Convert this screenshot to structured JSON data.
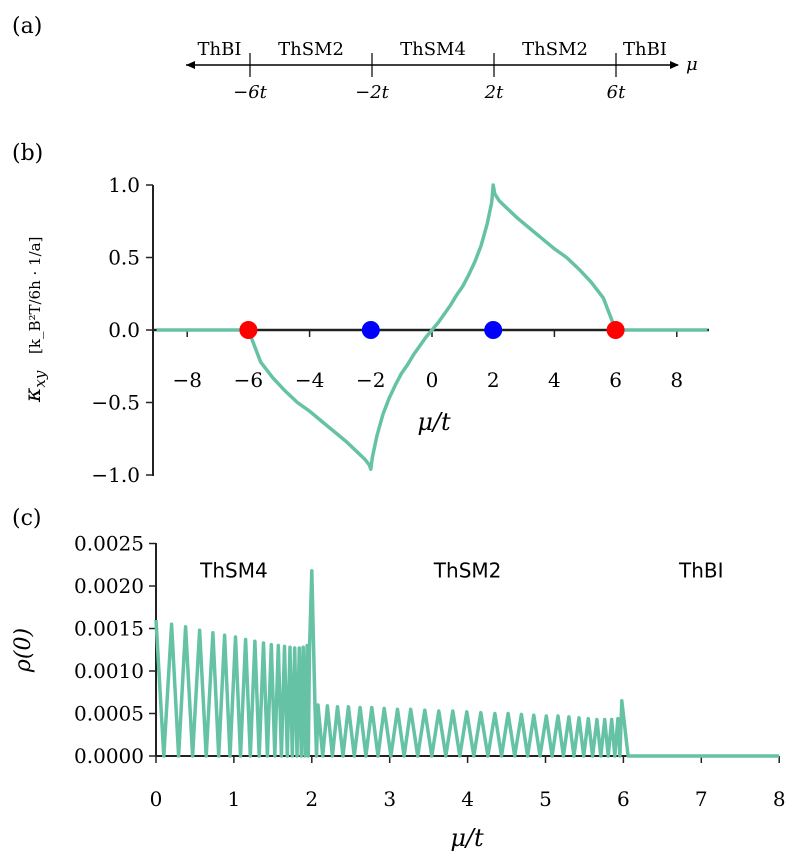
{
  "chart_data": [
    {
      "panel": "(a)",
      "type": "other",
      "description_kind": "phase line",
      "axis_symbol": "μ",
      "phases": [
        "ThBI",
        "ThSM2",
        "ThSM4",
        "ThSM2",
        "ThBI"
      ],
      "ticks": [
        {
          "value": -6,
          "label": "−6t"
        },
        {
          "value": -2,
          "label": "−2t"
        },
        {
          "value": 2,
          "label": "2t"
        },
        {
          "value": 6,
          "label": "6t"
        }
      ]
    },
    {
      "panel": "(b)",
      "type": "line",
      "xlabel": "μ/t",
      "ylabel": "κxy [k_B²T/6h · 1/a]",
      "ylabel_main": "κ",
      "ylabel_sub": "xy",
      "ylabel_units": "[k_B²T/6h · 1/a]",
      "xlim": [
        -9,
        9
      ],
      "ylim": [
        -1.0,
        1.0
      ],
      "xticks": [
        -8,
        -6,
        -4,
        -2,
        0,
        2,
        4,
        6,
        8
      ],
      "xtick_labels": [
        "−8",
        "−6",
        "−4",
        "−2",
        "0",
        "2",
        "4",
        "6",
        "8"
      ],
      "yticks": [
        -1.0,
        -0.5,
        0.0,
        0.5,
        1.0
      ],
      "ytick_labels": [
        "−1.0",
        "−0.5",
        "0.0",
        "0.5",
        "1.0"
      ],
      "series": [
        {
          "name": "kappa_xy",
          "color": "#66c2a5",
          "x": [
            -9,
            -8,
            -7,
            -6,
            -5.6,
            -5.2,
            -4.8,
            -4.4,
            -4.0,
            -3.6,
            -3.2,
            -2.8,
            -2.4,
            -2.2,
            -2.05,
            -2.0,
            -1.95,
            -1.8,
            -1.6,
            -1.4,
            -1.2,
            -1.0,
            -0.8,
            -0.6,
            -0.4,
            -0.2,
            0.0,
            0.2,
            0.4,
            0.6,
            0.8,
            1.0,
            1.2,
            1.4,
            1.6,
            1.8,
            1.95,
            2.0,
            2.05,
            2.2,
            2.4,
            2.8,
            3.2,
            3.6,
            4.0,
            4.4,
            4.8,
            5.2,
            5.6,
            6,
            7,
            8,
            9
          ],
          "y": [
            0,
            0,
            0,
            0,
            -0.22,
            -0.33,
            -0.42,
            -0.5,
            -0.56,
            -0.63,
            -0.7,
            -0.77,
            -0.85,
            -0.89,
            -0.93,
            -0.96,
            -0.88,
            -0.73,
            -0.58,
            -0.47,
            -0.38,
            -0.3,
            -0.24,
            -0.17,
            -0.11,
            -0.05,
            0.0,
            0.05,
            0.11,
            0.17,
            0.24,
            0.3,
            0.38,
            0.47,
            0.58,
            0.73,
            0.88,
            1.0,
            0.94,
            0.89,
            0.85,
            0.77,
            0.7,
            0.63,
            0.56,
            0.5,
            0.42,
            0.33,
            0.22,
            0,
            0,
            0,
            0
          ]
        }
      ],
      "markers": [
        {
          "x": -6,
          "y": 0,
          "color": "#ff0000"
        },
        {
          "x": -2,
          "y": 0,
          "color": "#0000ff"
        },
        {
          "x": 2,
          "y": 0,
          "color": "#0000ff"
        },
        {
          "x": 6,
          "y": 0,
          "color": "#ff0000"
        }
      ]
    },
    {
      "panel": "(c)",
      "type": "line",
      "xlabel": "μ/t",
      "ylabel": "ρ(0)",
      "xlim": [
        0,
        8
      ],
      "ylim": [
        0,
        0.0025
      ],
      "xticks": [
        0,
        1,
        2,
        3,
        4,
        5,
        6,
        7,
        8
      ],
      "xtick_labels": [
        "0",
        "1",
        "2",
        "3",
        "4",
        "5",
        "6",
        "7",
        "8"
      ],
      "yticks": [
        0.0,
        0.0005,
        0.001,
        0.0015,
        0.002,
        0.0025
      ],
      "ytick_labels": [
        "0.0000",
        "0.0005",
        "0.0010",
        "0.0015",
        "0.0020",
        "0.0025"
      ],
      "annotations": [
        {
          "text": "ThSM4",
          "x": 1.0,
          "y": 0.0021
        },
        {
          "text": "ThSM2",
          "x": 4.0,
          "y": 0.0021
        },
        {
          "text": "ThBI",
          "x": 7.0,
          "y": 0.0021
        }
      ],
      "color": "#66c2a5",
      "peaks_region1": {
        "x": [
          0.0,
          0.2,
          0.38,
          0.56,
          0.73,
          0.88,
          1.02,
          1.15,
          1.27,
          1.38,
          1.48,
          1.57,
          1.65,
          1.72,
          1.78,
          1.84,
          1.89,
          1.94
        ],
        "y": [
          0.0016,
          0.00155,
          0.00152,
          0.00148,
          0.00145,
          0.00142,
          0.0014,
          0.00137,
          0.00135,
          0.00133,
          0.00131,
          0.0013,
          0.00129,
          0.00128,
          0.00127,
          0.00127,
          0.00128,
          0.0013
        ]
      },
      "spike": {
        "x": 2.0,
        "y": 0.00218
      },
      "peaks_region2": {
        "x": [
          2.08,
          2.2,
          2.33,
          2.47,
          2.62,
          2.77,
          2.93,
          3.1,
          3.27,
          3.45,
          3.63,
          3.81,
          3.99,
          4.17,
          4.35,
          4.52,
          4.69,
          4.85,
          5.01,
          5.16,
          5.3,
          5.43,
          5.55,
          5.66,
          5.76,
          5.85,
          5.93,
          5.98
        ],
        "y": [
          0.0006,
          0.00059,
          0.00058,
          0.00058,
          0.00057,
          0.00057,
          0.00056,
          0.00055,
          0.00055,
          0.00054,
          0.00053,
          0.00053,
          0.00052,
          0.00051,
          0.0005,
          0.0005,
          0.00049,
          0.00048,
          0.00047,
          0.00047,
          0.00046,
          0.00045,
          0.00044,
          0.00043,
          0.00043,
          0.00043,
          0.00044,
          0.00065
        ]
      }
    }
  ]
}
